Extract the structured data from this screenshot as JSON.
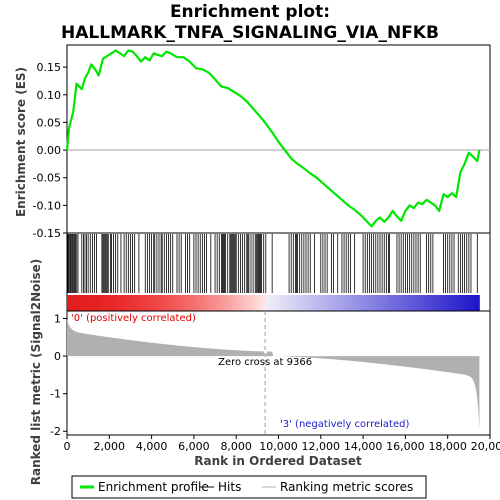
{
  "chart_data": {
    "type": "line",
    "title_lines": [
      "Enrichment plot:",
      "HALLMARK_TNFA_SIGNALING_VIA_NFKB"
    ],
    "xlabel": "Rank in Ordered Dataset",
    "ylabel_top": "Enrichment score (ES)",
    "ylabel_bottom": "Ranked list metric (Signal2Noise)",
    "x_range": [
      0,
      20000
    ],
    "x_ticks": [
      {
        "value": 0,
        "label": "0"
      },
      {
        "value": 2000,
        "label": "2,000"
      },
      {
        "value": 4000,
        "label": "4,000"
      },
      {
        "value": 6000,
        "label": "6,000"
      },
      {
        "value": 8000,
        "label": "8,000"
      },
      {
        "value": 10000,
        "label": "10,000"
      },
      {
        "value": 12000,
        "label": "12,000"
      },
      {
        "value": 14000,
        "label": "14,000"
      },
      {
        "value": 16000,
        "label": "16,000"
      },
      {
        "value": 18000,
        "label": "18,000"
      },
      {
        "value": 20000,
        "label": "20,000"
      }
    ],
    "es_ylim": [
      -0.15,
      0.19
    ],
    "es_ticks": [
      {
        "value": 0.15,
        "label": "0.15"
      },
      {
        "value": 0.1,
        "label": "0.10"
      },
      {
        "value": 0.05,
        "label": "0.05"
      },
      {
        "value": 0.0,
        "label": "0.00"
      },
      {
        "value": -0.05,
        "label": "-0.05"
      },
      {
        "value": -0.1,
        "label": "-0.10"
      },
      {
        "value": -0.15,
        "label": "-0.15"
      }
    ],
    "metric_ylim": [
      -2.1,
      1.2
    ],
    "metric_ticks": [
      {
        "value": 1,
        "label": "1"
      },
      {
        "value": 0,
        "label": "0"
      },
      {
        "value": -1,
        "label": "-1"
      },
      {
        "value": -2,
        "label": "-2"
      }
    ],
    "total_genes": 19500,
    "zero_cross": 9366,
    "zero_cross_label": "Zero cross at 9366",
    "pos_label": "'0' (positively correlated)",
    "neg_label": "'3' (negatively correlated)",
    "es_color": "#00e600",
    "hit_color": "#000000",
    "metric_fill_color": "#b0b0b0",
    "pos_label_color": "#e00000",
    "neg_label_color": "#2020c8",
    "legend": [
      {
        "label": "Enrichment profile",
        "color": "#00e600",
        "kind": "thick-line"
      },
      {
        "label": "Hits",
        "color": "#000000",
        "kind": "thin-line"
      },
      {
        "label": "Ranking metric scores",
        "color": "#b0b0b0",
        "kind": "thin-line"
      }
    ],
    "es_profile": [
      {
        "x": 0,
        "y": 0.0
      },
      {
        "x": 100,
        "y": 0.04
      },
      {
        "x": 300,
        "y": 0.07
      },
      {
        "x": 450,
        "y": 0.12
      },
      {
        "x": 700,
        "y": 0.11
      },
      {
        "x": 850,
        "y": 0.13
      },
      {
        "x": 1000,
        "y": 0.14
      },
      {
        "x": 1150,
        "y": 0.155
      },
      {
        "x": 1350,
        "y": 0.145
      },
      {
        "x": 1500,
        "y": 0.135
      },
      {
        "x": 1700,
        "y": 0.165
      },
      {
        "x": 1900,
        "y": 0.17
      },
      {
        "x": 2100,
        "y": 0.175
      },
      {
        "x": 2300,
        "y": 0.18
      },
      {
        "x": 2500,
        "y": 0.175
      },
      {
        "x": 2700,
        "y": 0.17
      },
      {
        "x": 2900,
        "y": 0.18
      },
      {
        "x": 3100,
        "y": 0.178
      },
      {
        "x": 3300,
        "y": 0.17
      },
      {
        "x": 3500,
        "y": 0.16
      },
      {
        "x": 3700,
        "y": 0.168
      },
      {
        "x": 3900,
        "y": 0.162
      },
      {
        "x": 4100,
        "y": 0.175
      },
      {
        "x": 4300,
        "y": 0.172
      },
      {
        "x": 4500,
        "y": 0.17
      },
      {
        "x": 4700,
        "y": 0.178
      },
      {
        "x": 4900,
        "y": 0.175
      },
      {
        "x": 5200,
        "y": 0.168
      },
      {
        "x": 5500,
        "y": 0.168
      },
      {
        "x": 5800,
        "y": 0.16
      },
      {
        "x": 6100,
        "y": 0.148
      },
      {
        "x": 6400,
        "y": 0.146
      },
      {
        "x": 6700,
        "y": 0.14
      },
      {
        "x": 7000,
        "y": 0.128
      },
      {
        "x": 7300,
        "y": 0.115
      },
      {
        "x": 7600,
        "y": 0.112
      },
      {
        "x": 7900,
        "y": 0.105
      },
      {
        "x": 8200,
        "y": 0.098
      },
      {
        "x": 8500,
        "y": 0.088
      },
      {
        "x": 8800,
        "y": 0.075
      },
      {
        "x": 9100,
        "y": 0.062
      },
      {
        "x": 9400,
        "y": 0.048
      },
      {
        "x": 9700,
        "y": 0.032
      },
      {
        "x": 10000,
        "y": 0.015
      },
      {
        "x": 10300,
        "y": 0.0
      },
      {
        "x": 10600,
        "y": -0.015
      },
      {
        "x": 10900,
        "y": -0.025
      },
      {
        "x": 11200,
        "y": -0.033
      },
      {
        "x": 11500,
        "y": -0.042
      },
      {
        "x": 11800,
        "y": -0.05
      },
      {
        "x": 12100,
        "y": -0.06
      },
      {
        "x": 12400,
        "y": -0.07
      },
      {
        "x": 12700,
        "y": -0.08
      },
      {
        "x": 13000,
        "y": -0.09
      },
      {
        "x": 13300,
        "y": -0.1
      },
      {
        "x": 13600,
        "y": -0.108
      },
      {
        "x": 13900,
        "y": -0.118
      },
      {
        "x": 14200,
        "y": -0.13
      },
      {
        "x": 14400,
        "y": -0.138
      },
      {
        "x": 14600,
        "y": -0.128
      },
      {
        "x": 14800,
        "y": -0.122
      },
      {
        "x": 15000,
        "y": -0.13
      },
      {
        "x": 15200,
        "y": -0.122
      },
      {
        "x": 15400,
        "y": -0.11
      },
      {
        "x": 15600,
        "y": -0.12
      },
      {
        "x": 15800,
        "y": -0.128
      },
      {
        "x": 16000,
        "y": -0.11
      },
      {
        "x": 16200,
        "y": -0.1
      },
      {
        "x": 16400,
        "y": -0.105
      },
      {
        "x": 16600,
        "y": -0.095
      },
      {
        "x": 16800,
        "y": -0.098
      },
      {
        "x": 17000,
        "y": -0.09
      },
      {
        "x": 17200,
        "y": -0.095
      },
      {
        "x": 17400,
        "y": -0.1
      },
      {
        "x": 17600,
        "y": -0.11
      },
      {
        "x": 17800,
        "y": -0.08
      },
      {
        "x": 18000,
        "y": -0.085
      },
      {
        "x": 18200,
        "y": -0.078
      },
      {
        "x": 18400,
        "y": -0.085
      },
      {
        "x": 18600,
        "y": -0.04
      },
      {
        "x": 18800,
        "y": -0.025
      },
      {
        "x": 19000,
        "y": -0.005
      },
      {
        "x": 19200,
        "y": -0.012
      },
      {
        "x": 19400,
        "y": -0.02
      },
      {
        "x": 19500,
        "y": 0.0
      }
    ]
  },
  "hit_positions": [
    40,
    80,
    130,
    170,
    220,
    260,
    300,
    350,
    400,
    460,
    520,
    700,
    780,
    850,
    920,
    1000,
    1100,
    1200,
    1300,
    1400,
    1650,
    1700,
    1750,
    1800,
    1850,
    1900,
    1950,
    2050,
    2100,
    2200,
    2300,
    2400,
    2550,
    2700,
    2800,
    2900,
    3000,
    3100,
    3200,
    3400,
    3700,
    3800,
    3900,
    4000,
    4100,
    4150,
    4250,
    4350,
    4450,
    4500,
    4600,
    4700,
    4800,
    4900,
    5000,
    5200,
    5300,
    5400,
    5600,
    5700,
    5800,
    6000,
    6100,
    6200,
    6300,
    6400,
    6500,
    6600,
    6800,
    7000,
    7100,
    7200,
    7300,
    7350,
    7400,
    7450,
    7500,
    7600,
    7700,
    7750,
    7800,
    7850,
    7900,
    7950,
    8000,
    8100,
    8200,
    8300,
    8400,
    8500,
    8550,
    8600,
    8700,
    8800,
    8900,
    8950,
    9000,
    9050,
    9100,
    9150,
    9200,
    9300,
    9400,
    9700,
    10500,
    10600,
    10700,
    10800,
    10850,
    10900,
    11000,
    11100,
    11200,
    11300,
    11400,
    11500,
    11700,
    12000,
    12100,
    12200,
    12300,
    12500,
    12600,
    12800,
    13000,
    13100,
    13200,
    13300,
    13400,
    13600,
    14000,
    14100,
    14200,
    14300,
    14400,
    14500,
    14600,
    14700,
    14800,
    14900,
    15000,
    15100,
    15200,
    15250,
    15600,
    15700,
    15800,
    15900,
    16000,
    16100,
    16200,
    16300,
    16400,
    16500,
    16600,
    16700,
    17000,
    17100,
    17200,
    17300,
    17800,
    17900,
    18000,
    18100,
    18200,
    18300,
    18500,
    18600,
    18700,
    18800,
    18900,
    19000,
    19100,
    19400
  ]
}
